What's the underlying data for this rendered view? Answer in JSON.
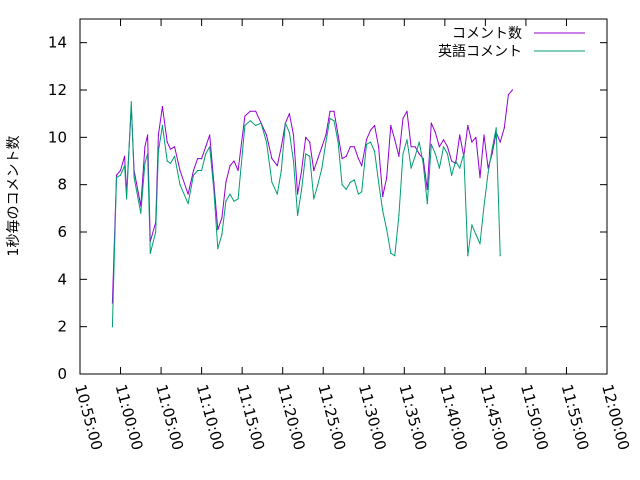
{
  "chart_data": {
    "type": "line",
    "title": "",
    "xlabel": "",
    "ylabel": "1秒毎のコメント数",
    "xlim": [
      "10:55:00",
      "12:00:00"
    ],
    "ylim": [
      0,
      15
    ],
    "yticks": [
      0,
      2,
      4,
      6,
      8,
      10,
      12,
      14
    ],
    "xticks": [
      "10:55:00",
      "11:00:00",
      "11:05:00",
      "11:10:00",
      "11:15:00",
      "11:20:00",
      "11:25:00",
      "11:30:00",
      "11:35:00",
      "11:40:00",
      "11:45:00",
      "11:50:00",
      "11:55:00",
      "12:00:00"
    ],
    "grid": false,
    "legend_position": "top-right",
    "series": [
      {
        "name": "コメント数",
        "color": "#9400d3",
        "points": [
          [
            "10:59:00",
            3.0
          ],
          [
            "10:59:30",
            8.4
          ],
          [
            "11:00:00",
            8.6
          ],
          [
            "11:00:30",
            9.2
          ],
          [
            "11:00:45",
            7.6
          ],
          [
            "11:01:20",
            11.3
          ],
          [
            "11:01:40",
            8.6
          ],
          [
            "11:02:30",
            7.1
          ],
          [
            "11:03:00",
            9.6
          ],
          [
            "11:03:20",
            10.1
          ],
          [
            "11:03:40",
            5.6
          ],
          [
            "11:04:20",
            6.4
          ],
          [
            "11:04:40",
            10.1
          ],
          [
            "11:05:10",
            11.3
          ],
          [
            "11:05:45",
            9.8
          ],
          [
            "11:06:10",
            9.5
          ],
          [
            "11:06:40",
            9.6
          ],
          [
            "11:07:20",
            8.6
          ],
          [
            "11:08:20",
            7.6
          ],
          [
            "11:09:00",
            8.6
          ],
          [
            "11:09:30",
            9.1
          ],
          [
            "11:10:00",
            9.1
          ],
          [
            "11:10:30",
            9.6
          ],
          [
            "11:11:00",
            10.1
          ],
          [
            "11:11:30",
            8.1
          ],
          [
            "11:12:00",
            6.1
          ],
          [
            "11:12:30",
            6.6
          ],
          [
            "11:13:00",
            8.1
          ],
          [
            "11:13:30",
            8.8
          ],
          [
            "11:14:00",
            9.0
          ],
          [
            "11:14:30",
            8.6
          ],
          [
            "11:15:20",
            10.9
          ],
          [
            "11:16:00",
            11.1
          ],
          [
            "11:16:40",
            11.1
          ],
          [
            "11:17:20",
            10.6
          ],
          [
            "11:18:00",
            10.1
          ],
          [
            "11:18:40",
            9.1
          ],
          [
            "11:19:20",
            8.8
          ],
          [
            "11:19:50",
            9.6
          ],
          [
            "11:20:20",
            10.6
          ],
          [
            "11:20:50",
            11.0
          ],
          [
            "11:21:20",
            10.1
          ],
          [
            "11:21:50",
            7.6
          ],
          [
            "11:22:20",
            8.6
          ],
          [
            "11:22:50",
            10.0
          ],
          [
            "11:23:20",
            9.8
          ],
          [
            "11:23:50",
            8.6
          ],
          [
            "11:24:20",
            9.1
          ],
          [
            "11:24:50",
            9.6
          ],
          [
            "11:25:20",
            10.1
          ],
          [
            "11:25:50",
            11.1
          ],
          [
            "11:26:20",
            11.1
          ],
          [
            "11:26:50",
            10.1
          ],
          [
            "11:27:20",
            9.1
          ],
          [
            "11:27:50",
            9.2
          ],
          [
            "11:28:20",
            9.6
          ],
          [
            "11:28:50",
            9.6
          ],
          [
            "11:29:20",
            9.1
          ],
          [
            "11:29:45",
            8.8
          ],
          [
            "11:30:20",
            9.9
          ],
          [
            "11:30:50",
            10.3
          ],
          [
            "11:31:20",
            10.5
          ],
          [
            "11:31:50",
            9.6
          ],
          [
            "11:32:20",
            7.5
          ],
          [
            "11:32:50",
            8.3
          ],
          [
            "11:33:20",
            10.5
          ],
          [
            "11:33:50",
            9.9
          ],
          [
            "11:34:20",
            9.2
          ],
          [
            "11:34:50",
            10.8
          ],
          [
            "11:35:20",
            11.1
          ],
          [
            "11:35:50",
            9.6
          ],
          [
            "11:36:20",
            9.6
          ],
          [
            "11:36:50",
            9.3
          ],
          [
            "11:37:20",
            9.1
          ],
          [
            "11:37:50",
            7.8
          ],
          [
            "11:38:20",
            10.6
          ],
          [
            "11:38:50",
            10.2
          ],
          [
            "11:39:20",
            9.6
          ],
          [
            "11:39:50",
            9.9
          ],
          [
            "11:40:20",
            9.6
          ],
          [
            "11:40:50",
            9.0
          ],
          [
            "11:41:20",
            8.9
          ],
          [
            "11:41:50",
            10.1
          ],
          [
            "11:42:20",
            9.2
          ],
          [
            "11:42:50",
            10.5
          ],
          [
            "11:43:20",
            9.8
          ],
          [
            "11:43:50",
            10.0
          ],
          [
            "11:44:20",
            8.3
          ],
          [
            "11:44:50",
            10.1
          ],
          [
            "11:45:20",
            8.7
          ],
          [
            "11:45:50",
            9.3
          ],
          [
            "11:46:20",
            10.2
          ],
          [
            "11:46:50",
            9.8
          ],
          [
            "11:47:20",
            10.4
          ],
          [
            "11:47:50",
            11.8
          ],
          [
            "11:48:20",
            12.0
          ]
        ]
      },
      {
        "name": "英語コメント",
        "color": "#009e73",
        "points": [
          [
            "10:59:00",
            2.0
          ],
          [
            "10:59:30",
            8.3
          ],
          [
            "11:00:00",
            8.4
          ],
          [
            "11:00:30",
            8.8
          ],
          [
            "11:00:45",
            7.4
          ],
          [
            "11:01:20",
            11.5
          ],
          [
            "11:01:40",
            8.3
          ],
          [
            "11:02:30",
            6.8
          ],
          [
            "11:03:00",
            8.9
          ],
          [
            "11:03:20",
            9.3
          ],
          [
            "11:03:40",
            5.1
          ],
          [
            "11:04:20",
            6.0
          ],
          [
            "11:04:40",
            9.4
          ],
          [
            "11:05:10",
            10.5
          ],
          [
            "11:05:45",
            9.0
          ],
          [
            "11:06:10",
            8.9
          ],
          [
            "11:06:40",
            9.2
          ],
          [
            "11:07:20",
            8.0
          ],
          [
            "11:08:20",
            7.2
          ],
          [
            "11:09:00",
            8.4
          ],
          [
            "11:09:30",
            8.6
          ],
          [
            "11:10:00",
            8.6
          ],
          [
            "11:10:30",
            9.3
          ],
          [
            "11:11:00",
            9.6
          ],
          [
            "11:11:30",
            7.8
          ],
          [
            "11:12:00",
            5.3
          ],
          [
            "11:12:30",
            5.9
          ],
          [
            "11:13:00",
            7.3
          ],
          [
            "11:13:30",
            7.6
          ],
          [
            "11:14:00",
            7.3
          ],
          [
            "11:14:30",
            7.4
          ],
          [
            "11:15:20",
            10.5
          ],
          [
            "11:16:00",
            10.7
          ],
          [
            "11:16:40",
            10.5
          ],
          [
            "11:17:20",
            10.6
          ],
          [
            "11:18:00",
            9.8
          ],
          [
            "11:18:40",
            8.1
          ],
          [
            "11:19:20",
            7.6
          ],
          [
            "11:19:50",
            8.6
          ],
          [
            "11:20:20",
            10.6
          ],
          [
            "11:20:50",
            10.2
          ],
          [
            "11:21:20",
            9.0
          ],
          [
            "11:21:50",
            6.7
          ],
          [
            "11:22:20",
            7.8
          ],
          [
            "11:22:50",
            9.3
          ],
          [
            "11:23:20",
            9.2
          ],
          [
            "11:23:50",
            7.4
          ],
          [
            "11:24:20",
            8.0
          ],
          [
            "11:24:50",
            8.7
          ],
          [
            "11:25:20",
            9.8
          ],
          [
            "11:25:50",
            10.8
          ],
          [
            "11:26:20",
            10.7
          ],
          [
            "11:26:50",
            9.8
          ],
          [
            "11:27:20",
            8.0
          ],
          [
            "11:27:50",
            7.8
          ],
          [
            "11:28:20",
            8.1
          ],
          [
            "11:28:50",
            8.2
          ],
          [
            "11:29:20",
            7.6
          ],
          [
            "11:29:45",
            7.7
          ],
          [
            "11:30:20",
            9.7
          ],
          [
            "11:30:50",
            9.8
          ],
          [
            "11:31:20",
            9.4
          ],
          [
            "11:31:50",
            8.1
          ],
          [
            "11:32:20",
            6.9
          ],
          [
            "11:32:50",
            6.1
          ],
          [
            "11:33:20",
            5.1
          ],
          [
            "11:33:50",
            5.0
          ],
          [
            "11:34:20",
            6.7
          ],
          [
            "11:34:50",
            9.3
          ],
          [
            "11:35:20",
            9.9
          ],
          [
            "11:35:50",
            8.7
          ],
          [
            "11:36:20",
            9.2
          ],
          [
            "11:36:50",
            9.8
          ],
          [
            "11:37:20",
            8.9
          ],
          [
            "11:37:50",
            7.2
          ],
          [
            "11:38:20",
            9.7
          ],
          [
            "11:38:50",
            9.3
          ],
          [
            "11:39:20",
            8.7
          ],
          [
            "11:39:50",
            9.6
          ],
          [
            "11:40:20",
            9.3
          ],
          [
            "11:40:50",
            8.4
          ],
          [
            "11:41:20",
            9.0
          ],
          [
            "11:41:50",
            8.7
          ],
          [
            "11:42:20",
            9.3
          ],
          [
            "11:42:50",
            5.0
          ],
          [
            "11:43:20",
            6.3
          ],
          [
            "11:43:50",
            5.9
          ],
          [
            "11:44:20",
            5.5
          ],
          [
            "11:44:50",
            7.1
          ],
          [
            "11:45:20",
            8.5
          ],
          [
            "11:45:50",
            9.5
          ],
          [
            "11:46:20",
            10.4
          ],
          [
            "11:46:50",
            5.0
          ]
        ]
      }
    ]
  }
}
